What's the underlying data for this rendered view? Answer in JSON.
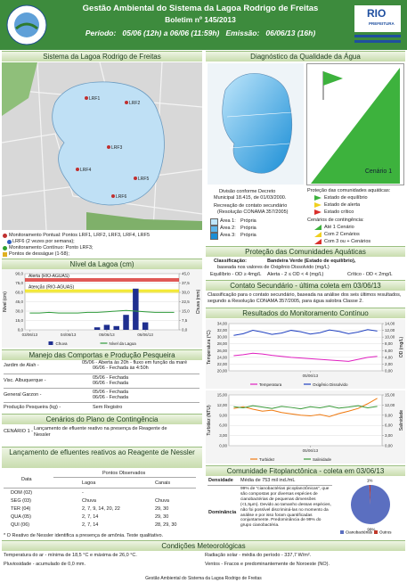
{
  "header": {
    "title": "Gestão Ambiental do Sistema da Lagoa Rodrigo de Freitas",
    "bulletin": "Boletim nº 145/2013",
    "period_label": "Período:",
    "period": "05/06 (12h) a 06/06 (11:59h)",
    "emission_label": "Emissão:",
    "emission": "06/06/13 (16h)",
    "logo": "RIO",
    "logo_sub": "PREFEITURA"
  },
  "system": {
    "heading": "Sistema da Lagoa Rodrigo de Freitas",
    "points": [
      "LRF1",
      "LRF2",
      "LRF3",
      "LRF4",
      "LRF5",
      "LRF6"
    ],
    "legend": [
      "Monitoramento Pontual: Pontos LRF1, LRF2, LRF3, LRF4, LRF5",
      "LRF6 (2 vezes por semana);",
      "Monitoramento Contínuo: Ponto LRF3;",
      "Pontos de desságue (1-58);"
    ]
  },
  "level": {
    "heading": "Nível da Lagoa (cm)",
    "chart_data": {
      "type": "bar",
      "y_label": "Nível (cm)",
      "y2_label": "Chuva (mm)",
      "categories": [
        "03/06/13",
        null,
        null,
        null,
        "04/06/13",
        null,
        null,
        null,
        "05/06/13",
        null,
        null,
        null,
        "06/06/13",
        null,
        null,
        null
      ],
      "series": [
        {
          "name": "Chuva",
          "type": "bar",
          "axis": "y2",
          "color": "#1f2f8f",
          "values": [
            0,
            0,
            0,
            0,
            0,
            0,
            0,
            2,
            4,
            3,
            12,
            33,
            6,
            0,
            0,
            0
          ]
        },
        {
          "name": "Nível da Lagoa",
          "type": "line",
          "color": "#2e9a3a",
          "values": [
            27,
            27,
            28,
            27,
            27,
            27,
            28,
            28,
            29,
            30,
            31,
            30,
            29,
            28,
            28,
            28
          ]
        }
      ],
      "thresholds": [
        {
          "label": "Alerta (RIO-AGUAS)",
          "value": 80,
          "color": "#d9302c"
        },
        {
          "label": "Atenção (RIO-AGUAS)",
          "value": 62,
          "color": "#f2e600"
        }
      ],
      "ylim": [
        0,
        90
      ],
      "yticks": [
        {
          "value": 0,
          "label": "0,0"
        },
        {
          "value": 15,
          "label": "15,0"
        },
        {
          "value": 30,
          "label": "30,0"
        },
        {
          "value": 45,
          "label": "45,0"
        },
        {
          "value": 60,
          "label": "60,0"
        },
        {
          "value": 75,
          "label": "75,0"
        },
        {
          "value": 90,
          "label": "90,0"
        }
      ],
      "y2lim": [
        0,
        45
      ],
      "y2ticks": [
        {
          "value": 0,
          "label": "0,0"
        },
        {
          "value": 7.5,
          "label": "7,5"
        },
        {
          "value": 15,
          "label": "15,0"
        },
        {
          "value": 22.5,
          "label": "22,5"
        },
        {
          "value": 30,
          "label": "30,0"
        },
        {
          "value": 37.5,
          "label": "37,5"
        },
        {
          "value": 45,
          "label": "45,0"
        }
      ],
      "grid": true
    }
  },
  "floodgates": {
    "heading": "Manejo das Comportas e Produção Pesqueira",
    "rows": [
      {
        "place": "Jardim de Alah -",
        "status": [
          "05/06 - Aberta às 20h - fluxo em função da maré",
          "06/06 - Fechada às 4:50h"
        ]
      },
      {
        "place": "Visc. Albuquerque -",
        "status": [
          "05/06 - Fechada",
          "06/06 - Fechada"
        ]
      },
      {
        "place": "General Garzon -",
        "status": [
          "05/06 - Fechada",
          "06/06 - Fechada"
        ]
      },
      {
        "place": "Produção Pesqueira (kg) -",
        "status": [
          "Sem Registro"
        ]
      }
    ]
  },
  "contingency": {
    "heading": "Cenários do Plano de Contingência",
    "label": "CENÁRIO 1 -",
    "text": "Lançamento de efluente reativo na presença de Reagente de Nessler"
  },
  "nessler": {
    "heading": "Lançamento de efluentes reativos ao Reagente de Nessler",
    "columns": [
      "Data",
      "Pontos Observados",
      "Lagoa",
      "Canais"
    ],
    "rows": [
      [
        "DOM (02)",
        "-"
      ],
      [
        "SEG (03)",
        "Chuva",
        "Chuva"
      ],
      [
        "TER (04)",
        "2, 7, 9, 14, 20, 22",
        "29, 30"
      ],
      [
        "QUA (05)",
        "2, 7, 14",
        "29, 30"
      ],
      [
        "QUI (06)",
        "2, 7, 14",
        "28, 29, 30"
      ]
    ],
    "note": "* O Reativo de Nessler identifica a presença de amônia. Teste qualitativo."
  },
  "diagnosis": {
    "heading": "Diagnóstico da Qualidade da Água",
    "flag_label": "Cenário 1",
    "division": [
      "Divisão conforme Decreto",
      "Municipal 18.415, de 01/03/2000."
    ],
    "recreation": [
      "Recreação de contato secundário",
      "(Resolução CONAMA 357/2005)"
    ],
    "areas": [
      [
        "Área 1:",
        "Própria"
      ],
      [
        "Área 2:",
        "Própria"
      ],
      [
        "Área 3:",
        "Própria"
      ]
    ],
    "protection_title": "Proteção das comunidades aquáticas:",
    "protection": [
      "Estado de equilíbrio",
      "Estado de alerta",
      "Estado crítico"
    ],
    "scenarios_title": "Cenários de contingência:",
    "scenarios": [
      "Até 1 Cenário",
      "Com 2 Cenários",
      "Com 3 ou + Cenários"
    ]
  },
  "aquatic": {
    "heading": "Proteção das Comunidades Aquáticas",
    "class_label": "Classificação:",
    "class_value": "Bandeira Verde (Estado de equilíbrio),",
    "basis": "baseada nos valores de Oxigênio Dissolvido (mg/L)",
    "levels": [
      "Equilíbrio - OD ≥ 4mg/L",
      "Alerta - 2 ≤ OD < 4 (mg/L)",
      "Crítico - OD < 2mg/L"
    ]
  },
  "secondary": {
    "heading": "Contato Secundário - última coleta em 03/06/13",
    "text": "Classificação para o contato secundário, baseada na análise dos seis últimos resultados, segundo a Resolução CONAMA 357/2005, para água salobra Classe 2."
  },
  "monitoring": {
    "heading": "Resultados do Monitoramento Contínuo",
    "temperature": {
      "chart_data": {
        "type": "line",
        "y_label": "Temperatura (°C)",
        "y2_label": "OD (mg/L)",
        "categories": [
          null,
          null,
          null,
          null,
          null,
          null,
          null,
          null,
          "05/06/13",
          null,
          null,
          null,
          null,
          null,
          null,
          null
        ],
        "series": [
          {
            "name": "Temperatura",
            "type": "line",
            "color": "#e020c0",
            "values": [
              24.5,
              24.8,
              25.2,
              25.0,
              24.6,
              24.3,
              24.0,
              23.8,
              23.6,
              23.4,
              23.2,
              23.0,
              22.8,
              23.4,
              24.0,
              24.3
            ]
          },
          {
            "name": "Oxigênio Dissolvido",
            "type": "line",
            "axis": "y2",
            "color": "#2040c0",
            "values": [
              10.5,
              11,
              12,
              11.5,
              10.8,
              11.2,
              12,
              11.6,
              10.9,
              11.3,
              12.1,
              11.7,
              11,
              11.5,
              12.2,
              11.8
            ]
          }
        ],
        "ylim": [
          20,
          34
        ],
        "yticks": [
          {
            "value": 20,
            "label": "20,00"
          },
          {
            "value": 22,
            "label": "22,00"
          },
          {
            "value": 24,
            "label": "24,00"
          },
          {
            "value": 26,
            "label": "26,00"
          },
          {
            "value": 28,
            "label": "28,00"
          },
          {
            "value": 30,
            "label": "30,00"
          },
          {
            "value": 32,
            "label": "32,00"
          },
          {
            "value": 34,
            "label": "34,00"
          }
        ],
        "y2lim": [
          0,
          14
        ],
        "y2ticks": [
          {
            "value": 0,
            "label": "0,00"
          },
          {
            "value": 2,
            "label": "2,00"
          },
          {
            "value": 4,
            "label": "4,00"
          },
          {
            "value": 6,
            "label": "6,00"
          },
          {
            "value": 8,
            "label": "8,00"
          },
          {
            "value": 10,
            "label": "10,00"
          },
          {
            "value": 12,
            "label": "12,00"
          },
          {
            "value": 14,
            "label": "14,00"
          }
        ],
        "grid": true
      }
    },
    "turbidity": {
      "chart_data": {
        "type": "line",
        "y_label": "Turbidez (NTU)",
        "y2_label": "Salinidade",
        "categories": [
          null,
          null,
          null,
          null,
          null,
          null,
          null,
          null,
          "05/06/13",
          null,
          null,
          null,
          null,
          null,
          null,
          null
        ],
        "series": [
          {
            "name": "Turbidez",
            "type": "line",
            "color": "#f07a10",
            "values": [
              11,
              11.5,
              10.8,
              10.2,
              10.5,
              9.8,
              9.4,
              9.0,
              8.8,
              9.2,
              8.6,
              9.5,
              10.2,
              11.0,
              12.4,
              14.0
            ]
          },
          {
            "name": "Salinidade",
            "type": "line",
            "axis": "y2",
            "color": "#3a9a3a",
            "values": [
              11.5,
              11.2,
              11.8,
              11.4,
              11.0,
              11.6,
              11.3,
              10.9,
              11.5,
              11.2,
              11.7,
              11.1,
              11.4,
              11.8,
              11.2,
              11.6
            ]
          }
        ],
        "ylim": [
          0,
          15
        ],
        "yticks": [
          {
            "value": 0,
            "label": "0,00"
          },
          {
            "value": 3,
            "label": "3,00"
          },
          {
            "value": 6,
            "label": "6,00"
          },
          {
            "value": 9,
            "label": "9,00"
          },
          {
            "value": 12,
            "label": "12,00"
          },
          {
            "value": 15,
            "label": "15,00"
          }
        ],
        "y2lim": [
          0,
          15
        ],
        "y2ticks": [
          {
            "value": 0,
            "label": "0,00"
          },
          {
            "value": 3,
            "label": "3,00"
          },
          {
            "value": 6,
            "label": "6,00"
          },
          {
            "value": 9,
            "label": "9,00"
          },
          {
            "value": 12,
            "label": "12,00"
          },
          {
            "value": 15,
            "label": "15,00"
          }
        ],
        "grid": true
      }
    }
  },
  "phyto": {
    "heading": "Comunidade Fitoplanctônica - coleta em 03/06/13",
    "density_label": "Densidade",
    "density": "Média de 753 mil ind./mL",
    "dominance_label": "Dominância",
    "dominance": "99% de \"cianobactérias picoplanctônicas\", que são compostas por diversas espécies de cianobactérias de pequenas dimensões (<1,5μm). Devido ao tamanho dessas espécies, não foi possível discriminá-las no momento da análise e por isso foram quantificadas conjuntamente. Predominância de 99% do grupo cianobactéria.",
    "chart_data": {
      "type": "pie",
      "categories": [
        "Cianobactérias",
        "Outros"
      ],
      "values": [
        99,
        1
      ],
      "value_labels": [
        "99%",
        "1%"
      ],
      "colors": [
        "#5b6fc0",
        "#c0392b"
      ]
    }
  },
  "weather": {
    "heading": "Condições Meteorológicas",
    "items": [
      "Temperatura do ar - mínima de 18,5 °C e máxima de 26,0 °C.",
      "Pluviosidade - acumulado de 0,0 mm.",
      "Radiação solar - média do período - 337,7 W/m².",
      "Ventos - Fracos e predominantemente de Noroeste (NO)."
    ]
  },
  "footer": "Gestão Ambiental do Sistema da Lagoa Rodrigo de Freitas"
}
